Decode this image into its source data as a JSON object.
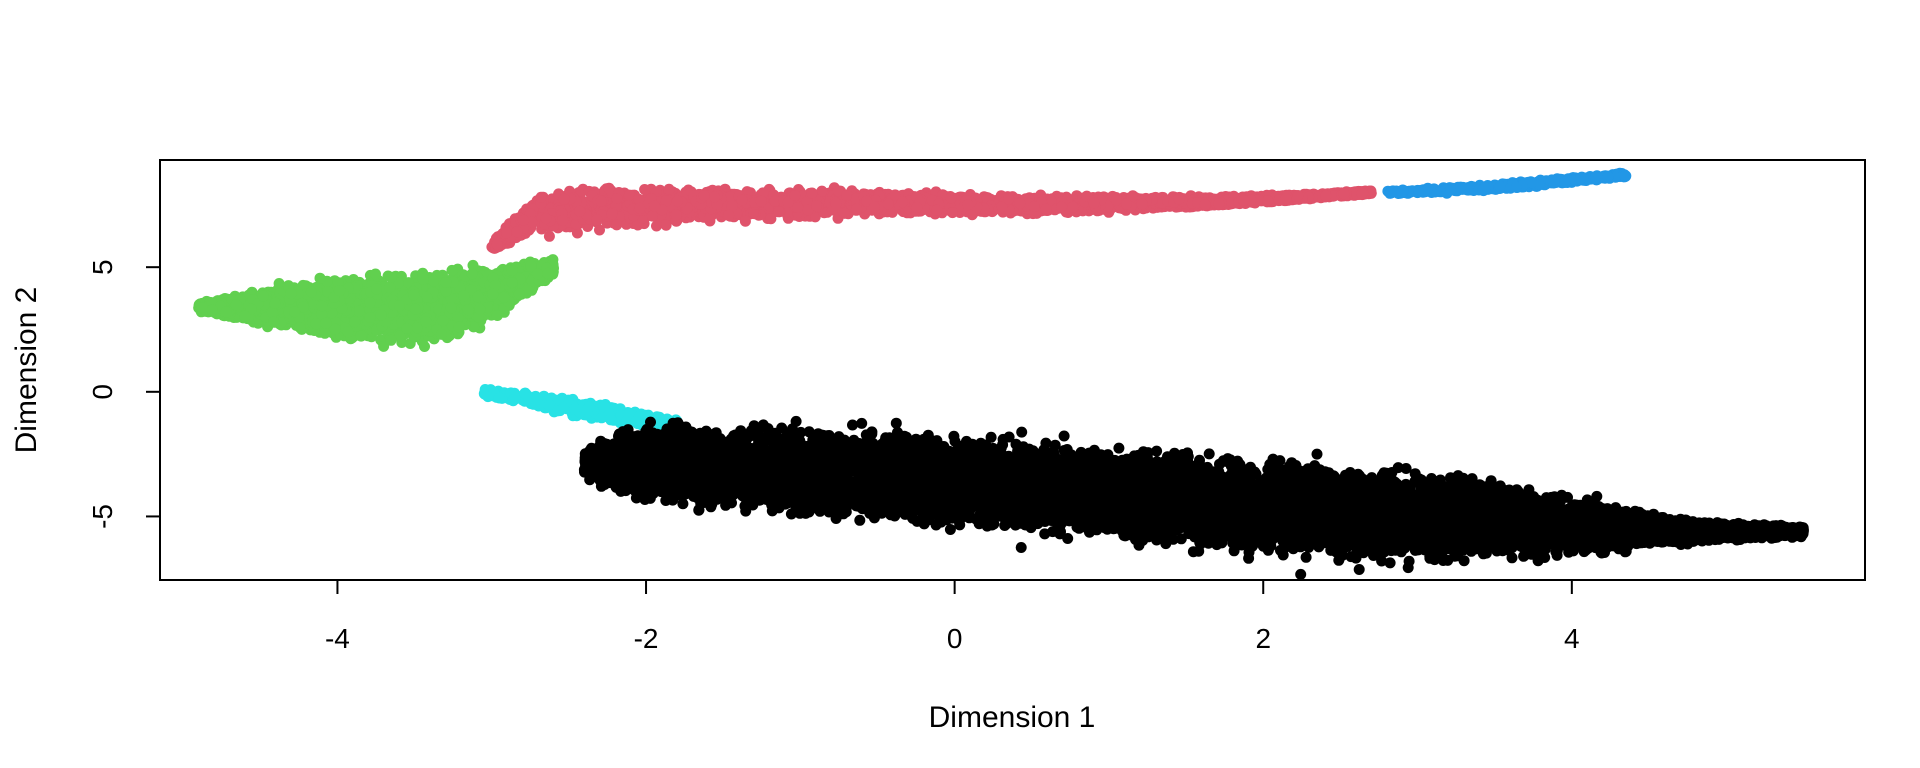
{
  "chart_data": {
    "type": "scatter",
    "title": "",
    "xlabel": "Dimension 1",
    "ylabel": "Dimension 2",
    "xlim": [
      -5.15,
      5.9
    ],
    "ylim": [
      -7.55,
      9.3
    ],
    "xticks": [
      -4,
      -2,
      0,
      2,
      4
    ],
    "yticks": [
      -5,
      0,
      5
    ],
    "grid": false,
    "legend": "none",
    "series": [
      {
        "color": "#df536b",
        "spine": [
          [
            -3.0,
            5.8
          ],
          [
            -2.7,
            7.2
          ],
          [
            -2.2,
            7.4
          ],
          [
            -1.5,
            7.5
          ],
          [
            -0.5,
            7.6
          ],
          [
            0.5,
            7.5
          ],
          [
            1.5,
            7.6
          ],
          [
            2.2,
            7.8
          ],
          [
            2.7,
            8.0
          ]
        ],
        "spread": [
          [
            -3.0,
            0.3
          ],
          [
            -2.7,
            1.4
          ],
          [
            -2.2,
            1.4
          ],
          [
            -1.5,
            1.1
          ],
          [
            -0.5,
            0.8
          ],
          [
            0.5,
            0.6
          ],
          [
            1.5,
            0.4
          ],
          [
            2.2,
            0.2
          ],
          [
            2.7,
            0.12
          ]
        ],
        "count": 2600
      },
      {
        "color": "#2297e6",
        "spine": [
          [
            2.8,
            8.0
          ],
          [
            3.5,
            8.2
          ],
          [
            4.35,
            8.7
          ]
        ],
        "spread": [
          [
            2.8,
            0.12
          ],
          [
            3.5,
            0.22
          ],
          [
            4.35,
            0.18
          ]
        ],
        "count": 320
      },
      {
        "color": "#61d04f",
        "spine": [
          [
            -4.9,
            3.4
          ],
          [
            -4.4,
            3.4
          ],
          [
            -3.8,
            3.3
          ],
          [
            -3.3,
            3.4
          ],
          [
            -2.9,
            4.2
          ],
          [
            -2.6,
            5.0
          ]
        ],
        "spread": [
          [
            -4.9,
            0.25
          ],
          [
            -4.4,
            1.3
          ],
          [
            -3.8,
            2.3
          ],
          [
            -3.3,
            2.3
          ],
          [
            -2.9,
            1.4
          ],
          [
            -2.6,
            0.5
          ]
        ],
        "count": 3200
      },
      {
        "color": "#28e2e5",
        "spine": [
          [
            -3.05,
            0.0
          ],
          [
            -2.8,
            -0.25
          ],
          [
            -2.5,
            -0.6
          ],
          [
            -2.1,
            -1.0
          ],
          [
            -1.8,
            -1.3
          ]
        ],
        "spread": [
          [
            -3.05,
            0.2
          ],
          [
            -2.8,
            0.45
          ],
          [
            -2.5,
            0.6
          ],
          [
            -2.1,
            0.5
          ],
          [
            -1.8,
            0.3
          ]
        ],
        "count": 380
      },
      {
        "color": "#000000",
        "spine": [
          [
            -2.4,
            -2.9
          ],
          [
            -2.0,
            -2.8
          ],
          [
            -1.0,
            -3.2
          ],
          [
            0.0,
            -3.6
          ],
          [
            1.0,
            -4.1
          ],
          [
            2.0,
            -4.6
          ],
          [
            3.0,
            -5.0
          ],
          [
            4.0,
            -5.4
          ],
          [
            4.7,
            -5.6
          ],
          [
            5.5,
            -5.6
          ]
        ],
        "spread": [
          [
            -2.4,
            1.0
          ],
          [
            -2.0,
            2.6
          ],
          [
            -1.0,
            3.0
          ],
          [
            0.0,
            3.0
          ],
          [
            1.0,
            3.0
          ],
          [
            2.0,
            3.1
          ],
          [
            3.0,
            3.0
          ],
          [
            4.0,
            2.0
          ],
          [
            4.7,
            0.8
          ],
          [
            5.5,
            0.3
          ]
        ],
        "count": 9000
      }
    ]
  }
}
